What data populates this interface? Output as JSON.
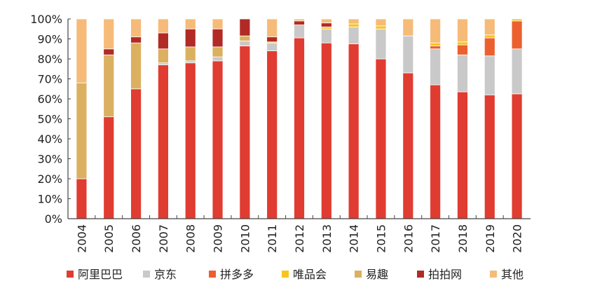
{
  "chart_data": {
    "type": "bar",
    "stacked": true,
    "title": "",
    "xlabel": "",
    "ylabel": "",
    "ylim": [
      0,
      100
    ],
    "y_ticks": [
      "0%",
      "10%",
      "20%",
      "30%",
      "40%",
      "50%",
      "60%",
      "70%",
      "80%",
      "90%",
      "100%"
    ],
    "grid": false,
    "legend_position": "bottom",
    "categories": [
      "2004",
      "2005",
      "2006",
      "2007",
      "2008",
      "2009",
      "2010",
      "2011",
      "2012",
      "2013",
      "2014",
      "2015",
      "2016",
      "2017",
      "2018",
      "2019",
      "2020"
    ],
    "series": [
      {
        "name": "阿里巴巴",
        "color": "#e03c31",
        "values": [
          20,
          51,
          65,
          77,
          78,
          79,
          86.5,
          84,
          90.5,
          88,
          87.5,
          80,
          73,
          67,
          63.5,
          62,
          62.5
        ]
      },
      {
        "name": "京东",
        "color": "#c9c9c9",
        "values": [
          0,
          0,
          0,
          1,
          1,
          2,
          2.5,
          4,
          6.5,
          7,
          8.5,
          15,
          18.5,
          18,
          18.5,
          19.5,
          22.5
        ]
      },
      {
        "name": "拼多多",
        "color": "#ec6030",
        "values": [
          0,
          0,
          0,
          0,
          0,
          0,
          0,
          0,
          0,
          0,
          0,
          0,
          0,
          1.5,
          5,
          9,
          14
        ]
      },
      {
        "name": "唯品会",
        "color": "#f7c51c",
        "values": [
          0,
          0,
          0,
          0,
          0,
          0,
          0,
          0.5,
          0,
          1,
          1.5,
          1.5,
          0,
          1.5,
          1.5,
          1.5,
          1
        ]
      },
      {
        "name": "易趣",
        "color": "#dbb060",
        "values": [
          48,
          31,
          23,
          7,
          7,
          5,
          2.5,
          0,
          0,
          0,
          0,
          0,
          0,
          0,
          0,
          0,
          0
        ]
      },
      {
        "name": "拍拍网",
        "color": "#b22a26",
        "values": [
          0,
          3,
          3,
          8,
          9,
          9,
          8.5,
          2.5,
          2,
          2,
          0,
          0,
          0,
          0,
          0,
          0,
          0
        ]
      },
      {
        "name": "其他",
        "color": "#f6bb78",
        "values": [
          32,
          15,
          9,
          7,
          5,
          5,
          0,
          9,
          1,
          2,
          2.5,
          3.5,
          8.5,
          12,
          11.5,
          8,
          0
        ]
      }
    ]
  }
}
